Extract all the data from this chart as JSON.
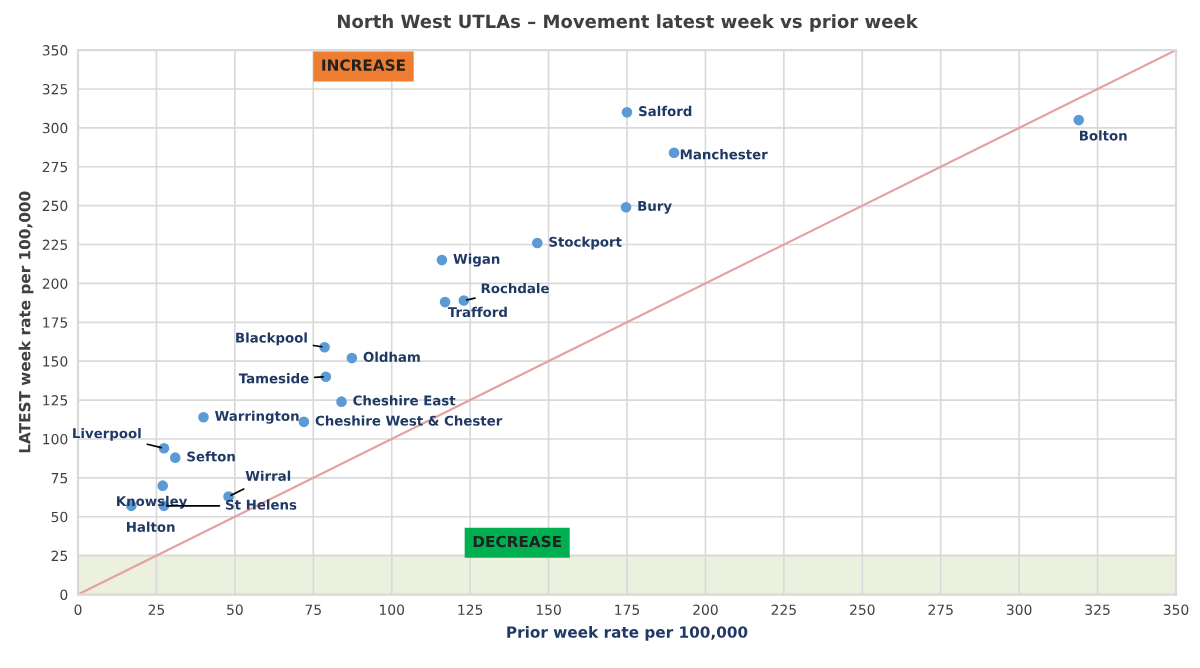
{
  "chart_data": {
    "type": "scatter",
    "title": "North West UTLAs – Movement latest week vs prior week",
    "xlabel": "Prior week rate per 100,000",
    "ylabel": "LATEST week rate per 100,000",
    "series": [
      {
        "color": "#5b9bd5",
        "marker": "circle",
        "x": [
          175,
          190,
          174.7,
          319,
          146.4,
          116,
          123,
          117,
          78.6,
          87.3,
          79,
          84,
          72,
          40,
          27.4,
          31,
          27,
          48,
          27.4,
          17
        ],
        "values": [
          310,
          284,
          249,
          305,
          226,
          215,
          189,
          188,
          159,
          152,
          140,
          124,
          111,
          114,
          94,
          88,
          70,
          63,
          57,
          57
        ]
      },
      {
        "type": "line",
        "color": "#e6a1a1",
        "marker": "none",
        "line_style": "solid",
        "x": [
          0,
          350
        ],
        "values": [
          0,
          350
        ]
      }
    ],
    "annotations": [
      {
        "text": "Salford",
        "x": 175,
        "y": 310
      },
      {
        "text": "Manchester",
        "x": 190,
        "y": 284
      },
      {
        "text": "Bury",
        "x": 174.7,
        "y": 249
      },
      {
        "text": "Bolton",
        "x": 319,
        "y": 305
      },
      {
        "text": "Stockport",
        "x": 146.4,
        "y": 226
      },
      {
        "text": "Wigan",
        "x": 116,
        "y": 215
      },
      {
        "text": "Rochdale",
        "x": 123,
        "y": 189
      },
      {
        "text": "Trafford",
        "x": 117,
        "y": 188
      },
      {
        "text": "Blackpool",
        "x": 78.6,
        "y": 159
      },
      {
        "text": "Oldham",
        "x": 87.3,
        "y": 152
      },
      {
        "text": "Tameside",
        "x": 79,
        "y": 140
      },
      {
        "text": "Cheshire East",
        "x": 84,
        "y": 124
      },
      {
        "text": "Cheshire West & Chester",
        "x": 72,
        "y": 111
      },
      {
        "text": "Warrington",
        "x": 40,
        "y": 114
      },
      {
        "text": "Liverpool",
        "x": 27.4,
        "y": 94
      },
      {
        "text": "Sefton",
        "x": 31,
        "y": 88
      },
      {
        "text": "Knowsley",
        "x": 27,
        "y": 70
      },
      {
        "text": "Wirral",
        "x": 48,
        "y": 63
      },
      {
        "text": "St Helens",
        "x": 27.4,
        "y": 57
      },
      {
        "text": "Halton",
        "x": 17,
        "y": 57
      },
      "INCREASE",
      "DECREASE"
    ],
    "bands": [
      {
        "axis": "y",
        "from": 0,
        "to": 25,
        "color": "#ebf1de"
      }
    ],
    "xlim": [
      0,
      350
    ],
    "ylim": [
      0,
      350
    ],
    "xticks": [
      0,
      25,
      50,
      75,
      100,
      125,
      150,
      175,
      200,
      225,
      250,
      275,
      300,
      325,
      350
    ],
    "yticks": [
      0,
      25,
      50,
      75,
      100,
      125,
      150,
      175,
      200,
      225,
      250,
      275,
      300,
      325,
      350
    ],
    "grid": true,
    "legend": false
  }
}
